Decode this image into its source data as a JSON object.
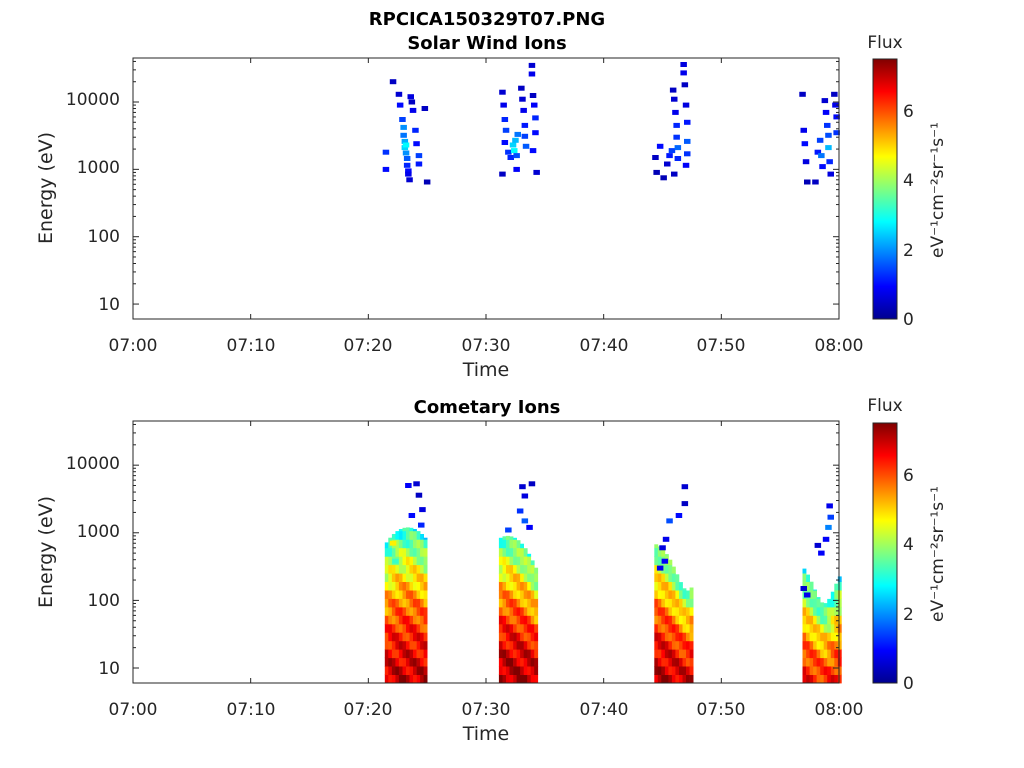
{
  "figure": {
    "title": "RPCICA150329T07.PNG"
  },
  "colors": {
    "colormap": "jet",
    "axes": "#262626",
    "background": "#ffffff"
  },
  "chart_data": [
    {
      "type": "heatmap",
      "title": "Solar Wind Ions",
      "xlabel": "Time",
      "ylabel": "Energy (eV)",
      "x_tick_labels": [
        "07:00",
        "07:10",
        "07:20",
        "07:30",
        "07:40",
        "07:50",
        "08:00"
      ],
      "x_range_minutes": [
        0,
        60
      ],
      "y_scale": "log",
      "y_tick_labels": [
        "10",
        "100",
        "1000",
        "10000"
      ],
      "y_range": [
        6,
        45000
      ],
      "colorbar": {
        "label": "Flux",
        "units": "eV⁻¹cm⁻²sr⁻¹s⁻¹",
        "range": [
          0,
          7.5
        ],
        "ticks": [
          "0",
          "2",
          "4",
          "6"
        ]
      },
      "cells": [
        [
          21.5,
          1800,
          1.3
        ],
        [
          21.5,
          1000,
          1.0
        ],
        [
          22.1,
          20000,
          0.5
        ],
        [
          22.6,
          13000,
          0.6
        ],
        [
          22.7,
          9000,
          1.0
        ],
        [
          22.9,
          5500,
          1.4
        ],
        [
          23.0,
          4200,
          2.0
        ],
        [
          23.0,
          3200,
          1.8
        ],
        [
          23.1,
          2600,
          2.2
        ],
        [
          23.1,
          2100,
          2.5
        ],
        [
          23.2,
          1750,
          2.0
        ],
        [
          23.3,
          1450,
          1.6
        ],
        [
          23.3,
          1150,
          1.2
        ],
        [
          23.4,
          950,
          1.0
        ],
        [
          23.4,
          850,
          0.8
        ],
        [
          23.5,
          700,
          0.6
        ],
        [
          23.2,
          2300,
          2.8
        ],
        [
          23.6,
          12000,
          0.7
        ],
        [
          23.7,
          10000,
          0.5
        ],
        [
          23.8,
          7500,
          0.8
        ],
        [
          24.0,
          3800,
          1.2
        ],
        [
          24.1,
          2400,
          1.0
        ],
        [
          24.3,
          1600,
          1.4
        ],
        [
          24.3,
          1200,
          1.1
        ],
        [
          24.8,
          8000,
          0.5
        ],
        [
          25.0,
          650,
          0.4
        ],
        [
          31.4,
          14000,
          0.6
        ],
        [
          31.5,
          9000,
          0.8
        ],
        [
          31.6,
          5500,
          1.2
        ],
        [
          31.7,
          3800,
          1.4
        ],
        [
          31.6,
          2500,
          1.0
        ],
        [
          31.4,
          850,
          0.5
        ],
        [
          31.9,
          1800,
          1.3
        ],
        [
          32.1,
          1500,
          1.2
        ],
        [
          32.3,
          2300,
          2.5
        ],
        [
          32.4,
          1900,
          2.8
        ],
        [
          32.5,
          2700,
          2.3
        ],
        [
          32.6,
          1600,
          1.5
        ],
        [
          32.6,
          1000,
          0.9
        ],
        [
          32.7,
          3300,
          1.8
        ],
        [
          33.0,
          16000,
          0.5
        ],
        [
          33.1,
          11000,
          0.6
        ],
        [
          33.2,
          7500,
          0.8
        ],
        [
          33.3,
          4500,
          1.1
        ],
        [
          33.3,
          3100,
          1.4
        ],
        [
          33.4,
          2200,
          1.6
        ],
        [
          33.9,
          35000,
          0.6
        ],
        [
          33.9,
          26000,
          0.8
        ],
        [
          34.0,
          12500,
          0.5
        ],
        [
          34.1,
          9000,
          0.9
        ],
        [
          34.2,
          5800,
          1.2
        ],
        [
          34.2,
          3500,
          1.0
        ],
        [
          34.0,
          1900,
          1.0
        ],
        [
          34.3,
          900,
          0.6
        ],
        [
          44.4,
          1500,
          0.5
        ],
        [
          44.5,
          900,
          0.4
        ],
        [
          44.8,
          2200,
          1.0
        ],
        [
          45.1,
          750,
          0.4
        ],
        [
          45.4,
          1200,
          0.6
        ],
        [
          45.6,
          1600,
          1.1
        ],
        [
          45.8,
          1900,
          1.4
        ],
        [
          45.9,
          15000,
          0.5
        ],
        [
          46.0,
          11000,
          0.6
        ],
        [
          46.1,
          7000,
          0.8
        ],
        [
          46.2,
          4500,
          1.2
        ],
        [
          46.2,
          3000,
          1.3
        ],
        [
          46.3,
          2100,
          1.7
        ],
        [
          46.3,
          1450,
          1.2
        ],
        [
          46.0,
          850,
          0.5
        ],
        [
          46.8,
          36000,
          0.7
        ],
        [
          46.8,
          27000,
          0.8
        ],
        [
          46.9,
          18000,
          0.5
        ],
        [
          47.0,
          9000,
          0.7
        ],
        [
          47.1,
          5000,
          1.1
        ],
        [
          47.1,
          2600,
          1.6
        ],
        [
          47.1,
          1700,
          1.3
        ],
        [
          47.0,
          1150,
          0.9
        ],
        [
          56.9,
          13000,
          0.5
        ],
        [
          57.0,
          3800,
          0.8
        ],
        [
          57.1,
          2400,
          1.0
        ],
        [
          57.2,
          1300,
          0.7
        ],
        [
          57.3,
          650,
          0.4
        ],
        [
          58.0,
          650,
          0.5
        ],
        [
          58.2,
          1800,
          1.1
        ],
        [
          58.4,
          2700,
          1.4
        ],
        [
          58.5,
          1600,
          1.8
        ],
        [
          58.6,
          1100,
          1.0
        ],
        [
          58.8,
          10500,
          0.6
        ],
        [
          58.9,
          7000,
          0.9
        ],
        [
          59.0,
          4500,
          1.3
        ],
        [
          59.1,
          3200,
          1.5
        ],
        [
          59.1,
          2100,
          2.3
        ],
        [
          59.2,
          1300,
          1.2
        ],
        [
          59.3,
          850,
          0.7
        ],
        [
          59.6,
          13000,
          0.5
        ],
        [
          59.7,
          9000,
          0.8
        ],
        [
          59.8,
          6000,
          1.0
        ],
        [
          59.8,
          3500,
          1.3
        ]
      ]
    },
    {
      "type": "heatmap",
      "title": "Cometary Ions",
      "xlabel": "Time",
      "ylabel": "Energy (eV)",
      "x_tick_labels": [
        "07:00",
        "07:10",
        "07:20",
        "07:30",
        "07:40",
        "07:50",
        "08:00"
      ],
      "x_range_minutes": [
        0,
        60
      ],
      "y_scale": "log",
      "y_tick_labels": [
        "10",
        "100",
        "1000",
        "10000"
      ],
      "y_range": [
        6,
        45000
      ],
      "colorbar": {
        "label": "Flux",
        "units": "eV⁻¹cm⁻²sr⁻¹s⁻¹",
        "range": [
          0,
          7.5
        ],
        "ticks": [
          "0",
          "2",
          "4",
          "6"
        ]
      },
      "bursts": [
        {
          "start": 21.4,
          "end": 25.0,
          "e_max": 1200,
          "peak": 7.2,
          "top_flux": 2.8
        },
        {
          "start": 31.1,
          "end": 34.4,
          "e_max": 900,
          "peak": 7.4,
          "top_flux": 3.0
        },
        {
          "start": 44.3,
          "end": 47.4,
          "e_max": 700,
          "peak": 7.3,
          "top_flux": 3.2
        },
        {
          "start": 56.9,
          "end": 60.0,
          "e_max": 450,
          "peak": 6.8,
          "top_flux": 2.6
        }
      ],
      "cells": [
        [
          22.1,
          700,
          4.8
        ],
        [
          22.3,
          380,
          3.2
        ],
        [
          23.4,
          5000,
          0.9
        ],
        [
          23.7,
          1800,
          1.0
        ],
        [
          24.1,
          5300,
          0.6
        ],
        [
          24.3,
          3600,
          0.5
        ],
        [
          24.6,
          2200,
          0.7
        ],
        [
          24.5,
          1300,
          1.2
        ],
        [
          33.1,
          4800,
          0.6
        ],
        [
          33.3,
          3500,
          0.7
        ],
        [
          33.9,
          5300,
          0.5
        ],
        [
          32.9,
          2100,
          1.3
        ],
        [
          33.3,
          1500,
          1.6
        ],
        [
          31.9,
          1100,
          1.4
        ],
        [
          33.7,
          1200,
          0.9
        ],
        [
          46.9,
          4800,
          0.6
        ],
        [
          46.9,
          2700,
          0.5
        ],
        [
          46.4,
          1800,
          1.0
        ],
        [
          45.6,
          1500,
          1.5
        ],
        [
          45.3,
          800,
          0.8
        ],
        [
          45.0,
          600,
          0.7
        ],
        [
          44.8,
          300,
          0.8
        ],
        [
          45.2,
          380,
          0.9
        ],
        [
          59.2,
          2500,
          0.8
        ],
        [
          59.3,
          1700,
          1.4
        ],
        [
          59.1,
          1200,
          1.9
        ],
        [
          58.9,
          800,
          0.9
        ],
        [
          58.2,
          650,
          0.6
        ],
        [
          58.5,
          500,
          0.9
        ],
        [
          57.0,
          150,
          0.6
        ],
        [
          57.3,
          120,
          0.8
        ]
      ]
    }
  ]
}
